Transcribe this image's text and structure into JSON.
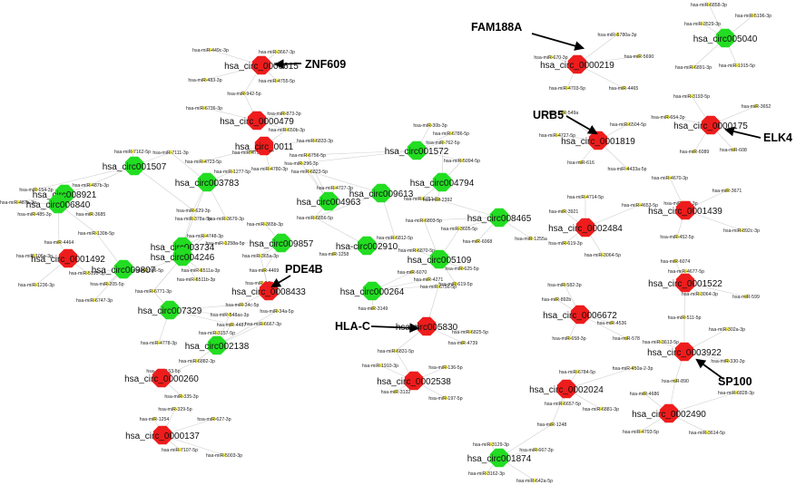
{
  "colors": {
    "up_node": "#ee1c1c",
    "down_node": "#22dd22",
    "mirna_node": "#f2e94a",
    "edge": "#cfcfcf",
    "arrow": "#000000"
  },
  "circrna_nodes": [
    {
      "label": "hsa_circ_0000615",
      "regulation": "up"
    },
    {
      "label": "hsa_circ_0000479",
      "regulation": "up"
    },
    {
      "label": "hsa_circ_0011",
      "regulation": "up"
    },
    {
      "label": "hsa_circ001507",
      "regulation": "down"
    },
    {
      "label": "hsa_circ003783",
      "regulation": "down"
    },
    {
      "label": "hsa_circ008921",
      "regulation": "down"
    },
    {
      "label": "hsa_circ006840",
      "regulation": "down"
    },
    {
      "label": "hsa_circ_0001492",
      "regulation": "up"
    },
    {
      "label": "hsa_circ009807",
      "regulation": "down"
    },
    {
      "label": "hsa_circ003734",
      "regulation": "down"
    },
    {
      "label": "hsa_circ004246",
      "regulation": "down"
    },
    {
      "label": "hsa_circ009857",
      "regulation": "down"
    },
    {
      "label": "hsa_circ_0008433",
      "regulation": "up"
    },
    {
      "label": "hsa_circ007329",
      "regulation": "down"
    },
    {
      "label": "hsa_circ002138",
      "regulation": "down"
    },
    {
      "label": "hsa_circ_0000260",
      "regulation": "up"
    },
    {
      "label": "hsa_circ_0000137",
      "regulation": "up"
    },
    {
      "label": "hsa_circ001572",
      "regulation": "down"
    },
    {
      "label": "hsa_circ004963",
      "regulation": "down"
    },
    {
      "label": "hsa_circ009613",
      "regulation": "down"
    },
    {
      "label": "hsa_circ004794",
      "regulation": "down"
    },
    {
      "label": "hsa-circ002910",
      "regulation": "down"
    },
    {
      "label": "hsa_circ008465",
      "regulation": "down"
    },
    {
      "label": "hsa_circ005109",
      "regulation": "down"
    },
    {
      "label": "hsa_circ000264",
      "regulation": "down"
    },
    {
      "label": "hsa-circ005830",
      "regulation": "up"
    },
    {
      "label": "hsa_circ_0002538",
      "regulation": "up"
    },
    {
      "label": "hsa_circ_0000219",
      "regulation": "up"
    },
    {
      "label": "hsa_circ005040",
      "regulation": "down"
    },
    {
      "label": "hsa_circ_0000175",
      "regulation": "up"
    },
    {
      "label": "hsa_circ_0001819",
      "regulation": "up"
    },
    {
      "label": "hsa_circ_0002484",
      "regulation": "up"
    },
    {
      "label": "hsa_circ_0001439",
      "regulation": "up"
    },
    {
      "label": "hsa_circ_0001522",
      "regulation": "up"
    },
    {
      "label": "hsa_circ_0006672",
      "regulation": "up"
    },
    {
      "label": "hsa_circ_0003922",
      "regulation": "up"
    },
    {
      "label": "hsa_circ_0002024",
      "regulation": "up"
    },
    {
      "label": "hsa_circ_0002490",
      "regulation": "up"
    },
    {
      "label": "hsa_circ001874",
      "regulation": "down"
    }
  ],
  "mirna_labels": [
    "hsa-miR-449c-3p",
    "hsa-miR-3667-3p",
    "hsa-miR-483-3p",
    "hsa-miR-4755-5p",
    "hsa-miR-942-5p",
    "hsa-miR-6736-3p",
    "hsa-miR-873-3p",
    "hsa-miR-650b-3p",
    "hsa-miR-6833-3p",
    "hsa-miR-4753-3p",
    "hsa-miR-4723-5p",
    "hsa-miR-4780-3p",
    "hsa-miR-7162-5p",
    "hsa-miR-7111-3p",
    "hsa-miR-4727-3p",
    "hsa-miR-1277-5p",
    "hsa-miR-487b-3p",
    "hsa-miR-154-3p",
    "hsa-miR-629-3p",
    "hsa-miR-378a-5p",
    "hsa-miR-3679-3p",
    "hsa-miR-487a-3p",
    "hsa-miR-3685",
    "hsa-miR-485-3p",
    "hsa-miR-130b-5p",
    "hsa-miR-1258a-5p",
    "hsa-miR-365b-3p",
    "hsa-miR-4464",
    "hsa-miR-4748-3p",
    "hsa-miR-106a-3p",
    "hsa-miR-5195-3p",
    "hsa-miR-1306-5p",
    "hsa-miR-6511a-3p",
    "hsa-miR-6511b-3p",
    "hsa-miR-4469",
    "hsa-miR-365a-3p",
    "hsa-miR-1236-3p",
    "hsa-miR-205-5p",
    "hsa-miR-6747-3p",
    "hsa-miR-6771-3p",
    "hsa-miR-34b-5p",
    "hsa-miR-34c-5p",
    "hsa-miR-548as-3p",
    "hsa-miR-4487",
    "hsa-miR-34a-5p",
    "hsa-miR-3157-5p",
    "hsa-miR-6667-3p",
    "hsa-miR-4778-3p",
    "hsa-miR-6882-3p",
    "hsa-miR-153-5p",
    "hsa-miR-335-3p",
    "hsa-miR-329-5p",
    "hsa-miR-1254",
    "hsa-miR-627-3p",
    "hsa-miR-7107-5p",
    "hsa-miR-5003-3p",
    "hsa-miR-30b-3p",
    "hsa-miR-6756-5p",
    "hsa-miR-6786-5p",
    "hsa-miR-296-3p",
    "hsa-miR-762-5p",
    "hsa-miR-6823-5p",
    "hsa-miR-5094-5p",
    "hsa-miR-6751-5p",
    "hsa-miR-2392",
    "hsa-miR-6856-5p",
    "hsa-miR-6803-5p",
    "hsa-miR-6812-5p",
    "hsa-miR-3605-5p",
    "hsa-miR-6068",
    "hsa-miR-1255a",
    "hsa-miR-6870-5p",
    "hsa-miR-1258",
    "hsa-miR-625-5p",
    "hsa-miR-6070",
    "hsa-miR-4271",
    "hsa-miR-619-5p",
    "hsa-miR-6756-5p",
    "hsa-miR-3149",
    "hsa-miR-4739",
    "hsa-miR-6825-5p",
    "hsa-miR-6831-5p",
    "hsa-miR-1910-3p",
    "hsa-miR-136-5p",
    "hsa-miR-3132",
    "hsa-miR-197-5p",
    "hsa-miR-670-3p",
    "hsa-miR-6780a-3p",
    "hsa-miR-5690",
    "hsa-miR-4703-5p",
    "hsa-miR-4465",
    "hsa-miR-6858-3p",
    "hsa-miR-3529-3p",
    "hsa-miR-5196-3p",
    "hsa-miR-6891-3p",
    "hsa-miR-1915-5p",
    "hsa-miR-3193-5p",
    "hsa-miR-3652",
    "hsa-miR-654-3p",
    "hsa-miR-608",
    "hsa-miR-6089",
    "hsa-miR-549a",
    "hsa-miR-6504-5p",
    "hsa-miR-4727-5p",
    "hsa-miR-616",
    "hsa-miR-4433a-5p",
    "hsa-miR-4670-3p",
    "hsa-miR-3671",
    "hsa-miR-223-3p",
    "hsa-miR-892c-3p",
    "hsa-miR-452-5p",
    "hsa-miR-4714-5p",
    "hsa-miR-4653-5p",
    "hsa-miR-3921",
    "hsa-miR-619-3p",
    "hsa-miR-3064-5p",
    "hsa-miR-6074",
    "hsa-miR-4677-5p",
    "hsa-miR-3064-3p",
    "hsa-miR-599",
    "hsa-miR-511-5p",
    "hsa-miR-582-3p",
    "hsa-miR-892b",
    "hsa-miR-4536",
    "hsa-miR-658-3p",
    "hsa-miR-578",
    "hsa-miR-302a-3p",
    "hsa-miR-3613-5p",
    "hsa-miR-330-3p",
    "hsa-miR-6784-5p",
    "hsa-miR-450a-2-3p",
    "hsa-miR-890",
    "hsa-miR-6828-3p",
    "hsa-miR-4686",
    "hsa-miR-6657-5p",
    "hsa-miR-6881-3p",
    "hsa-miR-1248",
    "hsa-miR-4793-5p",
    "hsa-miR-3614-5p",
    "hsa-miR-3129-3p",
    "hsa-miR-667-3p",
    "hsa-miR-3162-3p",
    "hsa-miR-642a-5p"
  ],
  "gene_labels": [
    "ZNF609",
    "FAM188A",
    "URB5",
    "ELK4",
    "PDE4B",
    "HLA-C",
    "SP100"
  ]
}
